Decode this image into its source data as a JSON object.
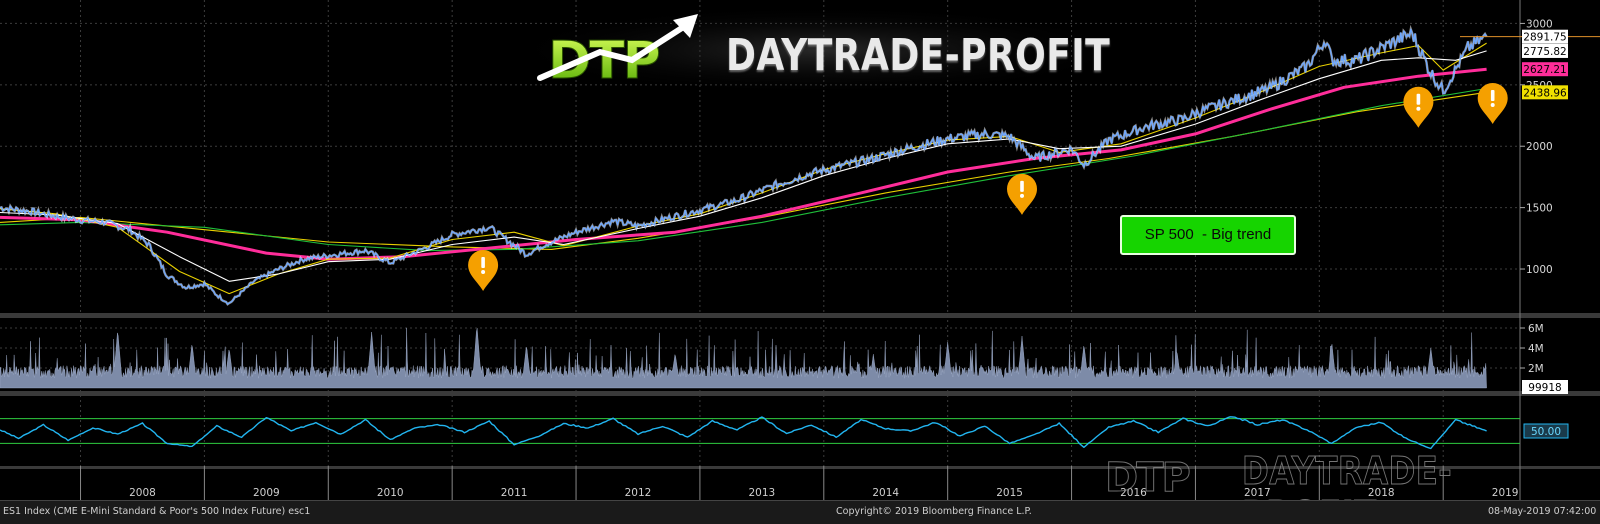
{
  "brand": {
    "logo_mark": "DTP",
    "logo_text": "DAYTRADE-PROFIT"
  },
  "annotation": {
    "label": "SP 500  - Big trend"
  },
  "footer": {
    "left": "ES1 Index (CME E-Mini Standard & Poor's 500 Index Future) esc1",
    "center": "Copyright© 2019 Bloomberg Finance L.P.",
    "right": "08-May-2019 07:42:00"
  },
  "colors": {
    "price": "#6fa8ff",
    "ma_fast": "#ffffff",
    "ma_yellow": "#e8d000",
    "ma_magenta": "#ff2d9a",
    "ma_green": "#1fbf3a",
    "volume": "#7d8ba8",
    "rsi": "#22b5f0",
    "rsi_bands": "#2ecc40",
    "warning": "#f5a000",
    "annotation_bg": "#16d400"
  },
  "chart_data": [
    {
      "type": "line",
      "panel": "price",
      "ylim": [
        650,
        3150
      ],
      "yticks": [
        1000,
        1500,
        2000,
        2500,
        3000
      ],
      "x_axis": [
        "2008",
        "2009",
        "2010",
        "2011",
        "2012",
        "2013",
        "2014",
        "2015",
        "2016",
        "2017",
        "2018",
        "2019"
      ],
      "last_value_labels": [
        {
          "value": "2891.75",
          "bg": "#ffffff",
          "fg": "#000000"
        },
        {
          "value": "2775.82",
          "bg": "#ffffff",
          "fg": "#000000"
        },
        {
          "value": "2627.21",
          "bg": "#ff2d9a",
          "fg": "#000000"
        },
        {
          "value": "2438.96",
          "bg": "#f0e000",
          "fg": "#000000"
        }
      ],
      "series": [
        {
          "role": "price",
          "color": "#6fa8ff",
          "x": [
            2007.35,
            2007.6,
            2007.8,
            2008.0,
            2008.2,
            2008.4,
            2008.55,
            2008.7,
            2008.85,
            2009.0,
            2009.1,
            2009.2,
            2009.4,
            2009.6,
            2009.8,
            2010.0,
            2010.3,
            2010.5,
            2010.8,
            2011.0,
            2011.3,
            2011.6,
            2011.75,
            2012.0,
            2012.3,
            2012.5,
            2012.8,
            2013.0,
            2013.3,
            2013.6,
            2013.9,
            2014.1,
            2014.4,
            2014.6,
            2014.8,
            2015.0,
            2015.3,
            2015.5,
            2015.7,
            2016.0,
            2016.1,
            2016.3,
            2016.6,
            2016.9,
            2017.0,
            2017.3,
            2017.6,
            2017.9,
            2018.05,
            2018.1,
            2018.3,
            2018.6,
            2018.75,
            2018.9,
            2019.0,
            2019.2,
            2019.35
          ],
          "y": [
            1500,
            1470,
            1430,
            1400,
            1380,
            1320,
            1200,
            950,
            850,
            880,
            790,
            720,
            900,
            1000,
            1080,
            1110,
            1150,
            1050,
            1180,
            1280,
            1340,
            1120,
            1200,
            1300,
            1390,
            1350,
            1430,
            1480,
            1560,
            1680,
            1780,
            1830,
            1900,
            1960,
            2010,
            2060,
            2100,
            2080,
            1900,
            1980,
            1850,
            2050,
            2160,
            2220,
            2270,
            2370,
            2470,
            2650,
            2870,
            2700,
            2700,
            2850,
            2920,
            2600,
            2450,
            2800,
            2892
          ]
        },
        {
          "role": "ma-white",
          "color": "#ffffff",
          "x": [
            2007.35,
            2007.8,
            2008.3,
            2008.8,
            2009.2,
            2009.6,
            2010.0,
            2010.5,
            2011.0,
            2011.5,
            2011.9,
            2012.5,
            2013.0,
            2013.5,
            2014.0,
            2014.5,
            2015.0,
            2015.5,
            2015.9,
            2016.4,
            2017.0,
            2017.5,
            2018.0,
            2018.5,
            2018.8,
            2019.1,
            2019.35
          ],
          "y": [
            1460,
            1440,
            1370,
            1100,
            900,
            960,
            1060,
            1080,
            1200,
            1260,
            1200,
            1330,
            1430,
            1580,
            1760,
            1900,
            2020,
            2060,
            1980,
            2000,
            2180,
            2370,
            2550,
            2700,
            2720,
            2700,
            2776
          ]
        },
        {
          "role": "ma-yellow-fast",
          "color": "#e8d000",
          "x": [
            2007.35,
            2007.8,
            2008.3,
            2008.8,
            2009.2,
            2009.6,
            2010.0,
            2010.5,
            2011.0,
            2011.5,
            2011.9,
            2012.5,
            2013.0,
            2013.5,
            2014.0,
            2014.5,
            2015.0,
            2015.5,
            2015.9,
            2016.4,
            2017.0,
            2017.5,
            2018.0,
            2018.5,
            2018.8,
            2019.0,
            2019.35
          ],
          "y": [
            1490,
            1450,
            1340,
            980,
            800,
            960,
            1080,
            1090,
            1240,
            1300,
            1190,
            1350,
            1450,
            1620,
            1810,
            1940,
            2050,
            2080,
            1950,
            2020,
            2230,
            2430,
            2650,
            2760,
            2820,
            2620,
            2840
          ]
        },
        {
          "role": "ma-yellow-slow",
          "color": "#e8d000",
          "x": [
            2007.35,
            2008.0,
            2009.0,
            2010.0,
            2011.0,
            2011.8,
            2012.5,
            2013.5,
            2014.5,
            2015.5,
            2016.3,
            2017.3,
            2018.3,
            2019.35
          ],
          "y": [
            1380,
            1420,
            1320,
            1220,
            1180,
            1160,
            1250,
            1420,
            1620,
            1790,
            1900,
            2080,
            2280,
            2439
          ]
        },
        {
          "role": "ma-magenta",
          "color": "#ff2d9a",
          "x": [
            2007.35,
            2008.0,
            2008.7,
            2009.5,
            2010.0,
            2010.6,
            2011.3,
            2012.0,
            2012.8,
            2013.5,
            2014.3,
            2015.0,
            2015.7,
            2016.4,
            2017.0,
            2017.6,
            2018.2,
            2018.8,
            2019.35
          ],
          "y": [
            1420,
            1400,
            1300,
            1130,
            1080,
            1100,
            1170,
            1240,
            1300,
            1430,
            1620,
            1790,
            1900,
            1970,
            2100,
            2300,
            2480,
            2570,
            2627
          ]
        },
        {
          "role": "ma-green",
          "color": "#1fbf3a",
          "x": [
            2007.35,
            2008.0,
            2009.0,
            2010.0,
            2010.8,
            2011.5,
            2012.5,
            2013.5,
            2014.5,
            2015.5,
            2016.5,
            2017.5,
            2018.5,
            2019.35
          ],
          "y": [
            1360,
            1380,
            1340,
            1200,
            1150,
            1160,
            1230,
            1380,
            1580,
            1760,
            1920,
            2120,
            2330,
            2470
          ]
        }
      ],
      "markers": [
        {
          "kind": "warning",
          "x": 2011.25,
          "y": 1000
        },
        {
          "kind": "warning",
          "x": 2015.6,
          "y": 1620
        },
        {
          "kind": "warning",
          "x": 2018.8,
          "y": 2330
        },
        {
          "kind": "warning",
          "x": 2019.4,
          "y": 2360
        }
      ]
    },
    {
      "type": "bar",
      "panel": "volume",
      "ylim": [
        0,
        6800000
      ],
      "yticks": [
        "2M",
        "4M",
        "6M"
      ],
      "ytick_values": [
        2000000,
        4000000,
        6000000
      ],
      "last_value_label": "99918",
      "baseline": 1400000,
      "spikes": [
        {
          "x": 2008.3,
          "value": 5800000
        },
        {
          "x": 2008.9,
          "value": 4500000
        },
        {
          "x": 2009.2,
          "value": 4000000
        },
        {
          "x": 2010.35,
          "value": 5600000
        },
        {
          "x": 2011.2,
          "value": 6300000
        },
        {
          "x": 2011.6,
          "value": 4300000
        },
        {
          "x": 2012.8,
          "value": 3500000
        },
        {
          "x": 2014.4,
          "value": 3300000
        },
        {
          "x": 2015.0,
          "value": 4600000
        },
        {
          "x": 2015.6,
          "value": 5200000
        },
        {
          "x": 2016.1,
          "value": 4400000
        },
        {
          "x": 2016.85,
          "value": 3800000
        },
        {
          "x": 2018.1,
          "value": 4600000
        },
        {
          "x": 2018.9,
          "value": 4000000
        },
        {
          "x": 2019.35,
          "value": 2900000
        }
      ]
    },
    {
      "type": "line",
      "panel": "rsi",
      "ylim": [
        0,
        100
      ],
      "bands": [
        30,
        70
      ],
      "last_value_label": "50.00",
      "x": [
        2007.35,
        2007.5,
        2007.7,
        2007.9,
        2008.1,
        2008.3,
        2008.5,
        2008.7,
        2008.9,
        2009.1,
        2009.3,
        2009.5,
        2009.7,
        2009.9,
        2010.1,
        2010.3,
        2010.5,
        2010.7,
        2010.9,
        2011.1,
        2011.3,
        2011.5,
        2011.7,
        2011.9,
        2012.1,
        2012.3,
        2012.5,
        2012.7,
        2012.9,
        2013.1,
        2013.3,
        2013.5,
        2013.7,
        2013.9,
        2014.1,
        2014.3,
        2014.5,
        2014.7,
        2014.9,
        2015.1,
        2015.3,
        2015.5,
        2015.7,
        2015.9,
        2016.1,
        2016.3,
        2016.5,
        2016.7,
        2016.9,
        2017.1,
        2017.3,
        2017.5,
        2017.7,
        2017.9,
        2018.1,
        2018.3,
        2018.5,
        2018.7,
        2018.9,
        2019.1,
        2019.35
      ],
      "y": [
        52,
        38,
        60,
        35,
        55,
        45,
        62,
        30,
        25,
        58,
        40,
        72,
        50,
        64,
        45,
        68,
        36,
        55,
        60,
        48,
        66,
        28,
        42,
        62,
        55,
        70,
        45,
        58,
        40,
        66,
        52,
        72,
        46,
        60,
        40,
        68,
        54,
        50,
        64,
        42,
        58,
        30,
        44,
        62,
        24,
        56,
        66,
        48,
        70,
        58,
        74,
        60,
        68,
        52,
        30,
        56,
        64,
        38,
        22,
        68,
        50
      ]
    }
  ]
}
